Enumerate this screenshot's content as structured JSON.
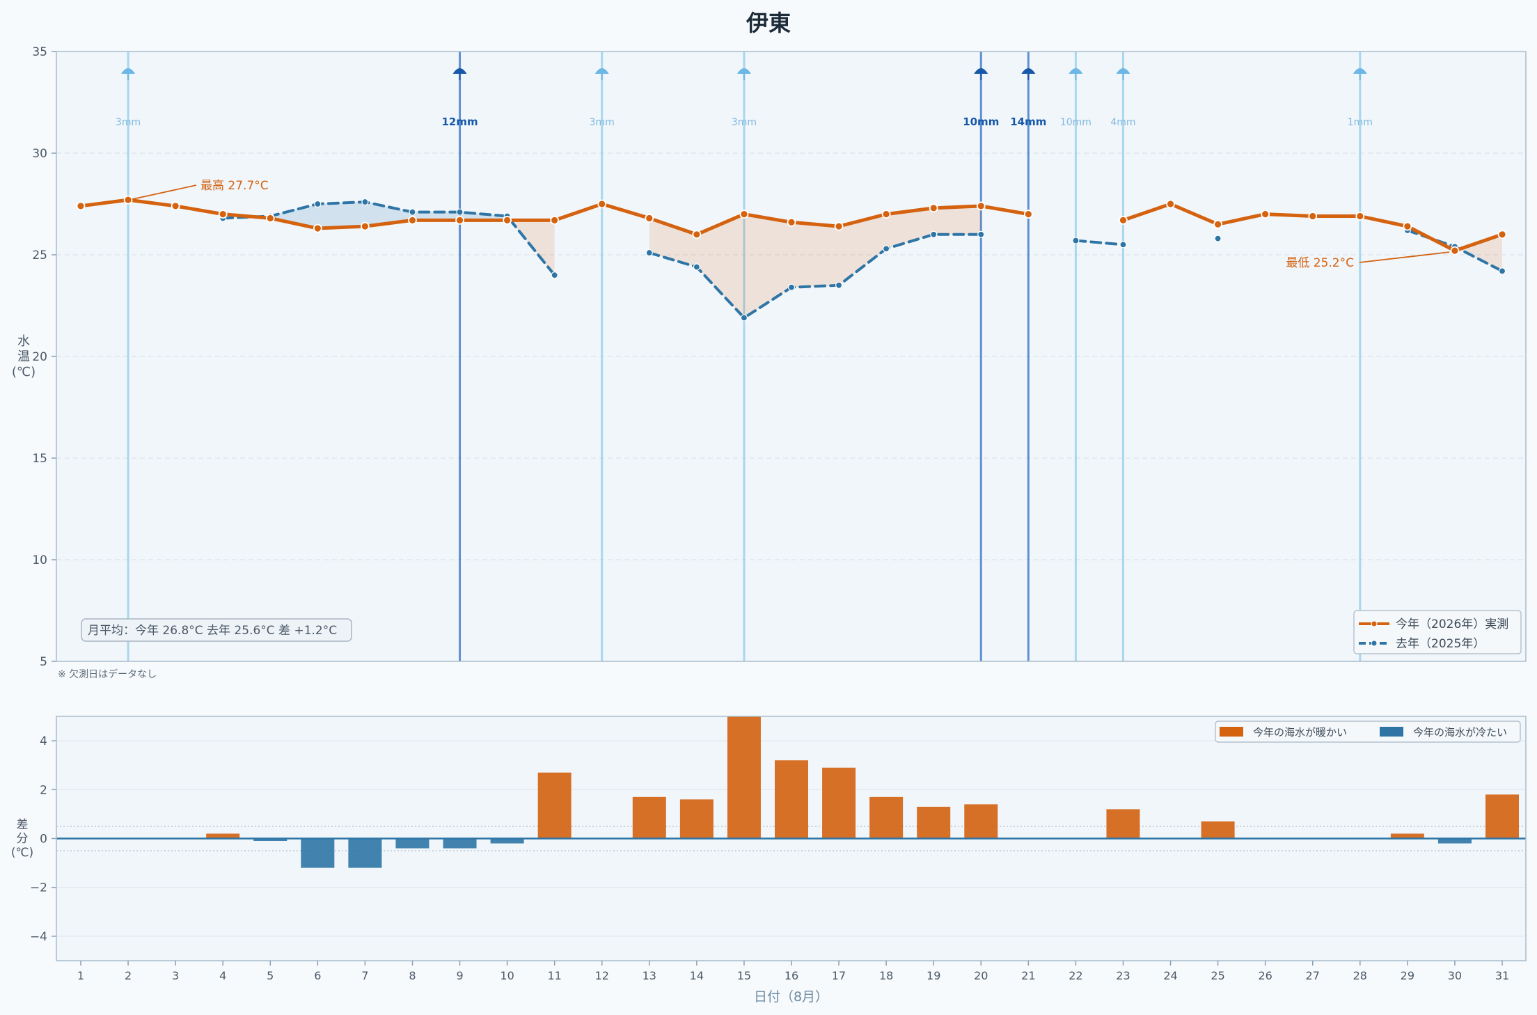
{
  "title": "伊東",
  "chart_data": [
    {
      "type": "line",
      "ylabel": "水温(℃)",
      "ylim": [
        5,
        35
      ],
      "yticks": [
        5,
        10,
        15,
        20,
        25,
        30,
        35
      ],
      "x": [
        1,
        2,
        3,
        4,
        5,
        6,
        7,
        8,
        9,
        10,
        11,
        12,
        13,
        14,
        15,
        16,
        17,
        18,
        19,
        20,
        21,
        22,
        23,
        24,
        25,
        26,
        27,
        28,
        29,
        30,
        31
      ],
      "series": [
        {
          "name": "今年（2026年）実測",
          "color": "#d4620f",
          "values": [
            27.4,
            27.7,
            27.4,
            27.0,
            26.8,
            26.3,
            26.4,
            26.7,
            26.7,
            26.7,
            26.7,
            27.5,
            26.8,
            26.0,
            27.0,
            26.6,
            26.4,
            27.0,
            27.3,
            27.4,
            27.0,
            null,
            26.7,
            27.5,
            26.5,
            27.0,
            26.9,
            26.9,
            26.4,
            25.2,
            26.0
          ]
        },
        {
          "name": "去年（2025年）",
          "color": "#2e75a6",
          "values": [
            null,
            null,
            null,
            26.8,
            26.9,
            27.5,
            27.6,
            27.1,
            27.1,
            26.9,
            24.0,
            null,
            25.1,
            24.4,
            21.9,
            23.4,
            23.5,
            25.3,
            26.0,
            26.0,
            null,
            25.7,
            25.5,
            null,
            25.8,
            null,
            null,
            null,
            26.2,
            25.4,
            24.2
          ]
        }
      ],
      "rain": [
        {
          "day": 2,
          "label": "3mm",
          "heavy": false
        },
        {
          "day": 9,
          "label": "12mm",
          "heavy": true
        },
        {
          "day": 12,
          "label": "3mm",
          "heavy": false
        },
        {
          "day": 15,
          "label": "3mm",
          "heavy": false
        },
        {
          "day": 20,
          "label": "10mm",
          "heavy": true
        },
        {
          "day": 21,
          "label": "14mm",
          "heavy": true
        },
        {
          "day": 22,
          "label": "10mm",
          "heavy": false
        },
        {
          "day": 23,
          "label": "4mm",
          "heavy": false
        },
        {
          "day": 28,
          "label": "1mm",
          "heavy": false
        }
      ],
      "rain_icon": "umbrella-icon",
      "annotations": [
        {
          "day": 2,
          "value": 27.7,
          "text": "最高 27.7°C"
        },
        {
          "day": 30,
          "value": 25.2,
          "text": "最低 25.2°C"
        }
      ],
      "summary": "月平均：今年 26.8°C  去年 25.6°C  差 +1.2°C",
      "note": "※ 欠測日はデータなし",
      "legend_position": "bottom-right",
      "grid": true
    },
    {
      "type": "bar",
      "ylabel": "差分(℃)",
      "ylim": [
        -5,
        5
      ],
      "yticks": [
        -4,
        -2,
        0,
        2,
        4
      ],
      "categories": [
        "1",
        "2",
        "3",
        "4",
        "5",
        "6",
        "7",
        "8",
        "9",
        "10",
        "11",
        "12",
        "13",
        "14",
        "15",
        "16",
        "17",
        "18",
        "19",
        "20",
        "21",
        "22",
        "23",
        "24",
        "25",
        "26",
        "27",
        "28",
        "29",
        "30",
        "31"
      ],
      "values": [
        0,
        0,
        0,
        0.2,
        -0.1,
        -1.2,
        -1.2,
        -0.4,
        -0.4,
        -0.2,
        2.7,
        0,
        1.7,
        1.6,
        5.1,
        3.2,
        2.9,
        1.7,
        1.3,
        1.4,
        0,
        0,
        1.2,
        0,
        0.7,
        0,
        0,
        0,
        0.2,
        -0.2,
        1.8
      ],
      "xlabel": "日付（8月）",
      "legend": [
        {
          "name": "今年の海水が暖かい",
          "color": "#d4620f"
        },
        {
          "name": "今年の海水が冷たい",
          "color": "#2e75a6"
        }
      ],
      "legend_position": "top-right",
      "grid": true
    }
  ]
}
